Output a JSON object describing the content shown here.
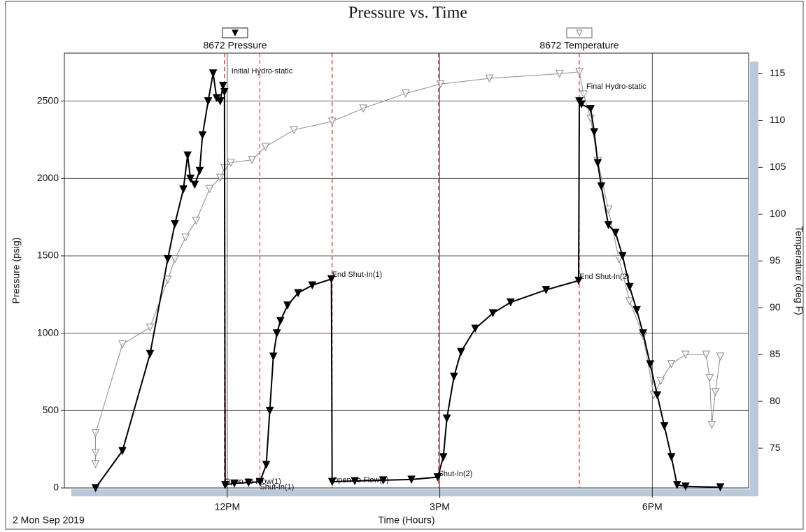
{
  "chart_data": {
    "type": "line",
    "title": "Pressure vs. Time",
    "x_label": "Time (Hours)",
    "y_label": "Pressure (psig)",
    "y2_label": "Temperature (deg F)",
    "date_label": "2 Mon Sep 2019",
    "xlim": [
      9.7,
      19.36
    ],
    "xticks": [
      {
        "value": 12,
        "label": "12PM"
      },
      {
        "value": 15,
        "label": "3PM"
      },
      {
        "value": 18,
        "label": "6PM"
      }
    ],
    "ylim": [
      0,
      2810
    ],
    "yticks": [
      0,
      500,
      1000,
      1500,
      2000,
      2500
    ],
    "y2lim": [
      70.75,
      117.2
    ],
    "y2ticks": [
      75,
      80,
      85,
      90,
      95,
      100,
      105,
      110,
      115
    ],
    "grid": true,
    "series": [
      {
        "name": "8672 Pressure",
        "color": "#000000",
        "marker": "filled",
        "x": [
          10.14,
          10.52,
          10.91,
          11.16,
          11.26,
          11.38,
          11.44,
          11.48,
          11.54,
          11.61,
          11.65,
          11.73,
          11.8,
          11.85,
          11.9,
          11.94,
          11.96,
          11.97,
          12.1,
          12.3,
          12.46,
          12.55,
          12.6,
          12.65,
          12.7,
          12.75,
          12.85,
          13.0,
          13.2,
          13.47,
          13.48,
          13.8,
          14.2,
          14.6,
          14.97,
          15.05,
          15.1,
          15.2,
          15.3,
          15.5,
          15.75,
          16.0,
          16.5,
          16.96,
          16.97,
          17.0,
          17.13,
          17.18,
          17.23,
          17.28,
          17.38,
          17.48,
          17.58,
          17.68,
          17.78,
          17.87,
          17.97,
          18.07,
          18.17,
          18.27,
          18.35,
          18.47,
          18.96
        ],
        "values": [
          0,
          240,
          867,
          1480,
          1706,
          1930,
          2150,
          2000,
          1960,
          2050,
          2280,
          2500,
          2680,
          2520,
          2500,
          2600,
          2560,
          20,
          30,
          35,
          40,
          150,
          500,
          850,
          1000,
          1080,
          1180,
          1260,
          1310,
          1350,
          40,
          45,
          50,
          55,
          70,
          200,
          450,
          720,
          880,
          1030,
          1130,
          1200,
          1280,
          1340,
          2500,
          2480,
          2450,
          2300,
          2100,
          1950,
          1700,
          1650,
          1500,
          1300,
          1150,
          1000,
          800,
          600,
          400,
          200,
          20,
          10,
          5
        ]
      },
      {
        "name": "8672 Temperature",
        "color": "#8c8c8c",
        "marker": "open",
        "axis": "y2",
        "x": [
          10.14,
          10.14,
          10.14,
          10.52,
          10.91,
          11.16,
          11.26,
          11.41,
          11.56,
          11.75,
          11.9,
          11.96,
          12.05,
          12.35,
          12.54,
          12.94,
          13.48,
          13.92,
          14.52,
          15.01,
          15.7,
          16.69,
          16.97,
          17.03,
          17.13,
          17.23,
          17.38,
          17.53,
          17.68,
          17.87,
          18.02,
          18.12,
          18.27,
          18.47,
          18.76,
          18.81,
          18.84,
          18.89,
          18.96
        ],
        "values": [
          73.3,
          74.5,
          76.6,
          86.1,
          87.9,
          93,
          95.2,
          97.5,
          99.3,
          102.7,
          103.9,
          104.9,
          105.5,
          105.8,
          107.2,
          109,
          109.9,
          111.3,
          112.9,
          113.9,
          114.5,
          115,
          115.2,
          112.8,
          110.2,
          105.7,
          100.5,
          95.2,
          90.7,
          87,
          80.7,
          82.2,
          84,
          85,
          85,
          82.5,
          77.5,
          81,
          84.8
        ]
      }
    ],
    "annotations": [
      {
        "x": 11.96,
        "text": "Initial Hydro-static",
        "color": "#000000"
      },
      {
        "x": 11.96,
        "text": "Open To Flow(1)",
        "color": "#e0201b"
      },
      {
        "x": 12.46,
        "text": "Shut-In(1)",
        "color": "#e0201b"
      },
      {
        "x": 13.48,
        "text": "End Shut-In(1)",
        "color": "#e0201b"
      },
      {
        "x": 13.48,
        "text": "Open To Flow(2)",
        "color": "#e0201b"
      },
      {
        "x": 14.98,
        "text": "Shut-In(2)",
        "color": "#e0201b"
      },
      {
        "x": 16.97,
        "text": "End Shut-In(2)",
        "color": "#e0201b"
      },
      {
        "x": 16.97,
        "text": "Final Hydro-static",
        "color": "#000000"
      }
    ],
    "annotation_line_color": "#e0201b"
  }
}
